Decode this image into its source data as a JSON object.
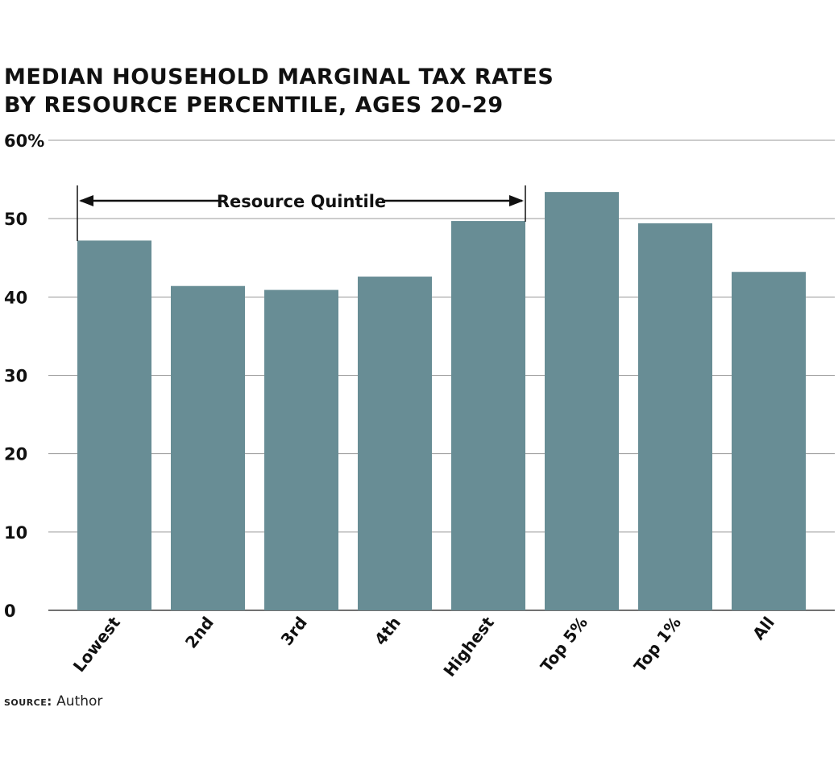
{
  "title_line1": "MEDIAN HOUSEHOLD MARGINAL TAX RATES",
  "title_line2": "BY RESOURCE PERCENTILE, AGES 20–29",
  "source_label": "source:",
  "source_text": "Author",
  "colors": {
    "bar": "#688d95",
    "grid": "#9a9a9a",
    "text": "#111111"
  },
  "chart_data": {
    "type": "bar",
    "categories": [
      "Lowest",
      "2nd",
      "3rd",
      "4th",
      "Highest",
      "Top 5%",
      "Top 1%",
      "All"
    ],
    "values": [
      47.2,
      41.4,
      40.9,
      42.6,
      49.7,
      53.4,
      49.4,
      43.2
    ],
    "ylim": [
      0,
      60
    ],
    "yticks": [
      0,
      10,
      20,
      30,
      40,
      50,
      60
    ],
    "ytick_labels": [
      "0",
      "10",
      "20",
      "30",
      "40",
      "50",
      "60%"
    ],
    "grid": true,
    "annotation": {
      "text": "Resource Quintile",
      "from_category": "Lowest",
      "to_category": "Highest"
    }
  }
}
